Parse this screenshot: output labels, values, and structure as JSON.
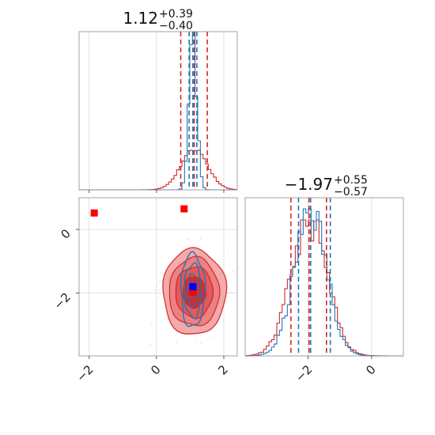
{
  "colors": {
    "red": "#d62728",
    "blue": "#1f77b4",
    "marker_red": "#ff0000",
    "marker_blue": "#0000ff"
  },
  "chart_data": {
    "type": "corner",
    "parameters": [
      {
        "title_main": "1.12",
        "title_plus": "+0.39",
        "title_minus": "−0.40"
      },
      {
        "title_main": "−1.97",
        "title_plus": "+0.55",
        "title_minus": "−0.57"
      }
    ],
    "axes": {
      "p1_range": [
        -2.3,
        2.4
      ],
      "p2_range": [
        -3.98,
        1.0
      ],
      "p1_ticks": [
        -2,
        0,
        2
      ],
      "p1_tick_labels": [
        "−2",
        "0",
        "2"
      ],
      "p2_ticks": [
        -2,
        0
      ],
      "p2_tick_labels": [
        "−2",
        "0"
      ],
      "grid": true
    },
    "series": [
      {
        "color": "red",
        "p1_quantiles": [
          0.72,
          1.12,
          1.51
        ],
        "p2_quantiles": [
          -2.54,
          -1.97,
          -1.42
        ],
        "p1_hist_peak": 0.26,
        "p2_hist_peak": 0.86
      },
      {
        "color": "blue",
        "p1_quantiles": [
          0.97,
          1.08,
          1.2
        ],
        "p2_quantiles": [
          -2.3,
          -1.92,
          -1.3
        ],
        "p1_hist_peak": 1.0,
        "p2_hist_peak": 0.93
      }
    ],
    "markers": [
      {
        "color": "marker_red",
        "shape": "square",
        "p1": -1.85,
        "p2": 0.52
      },
      {
        "color": "marker_red",
        "shape": "square",
        "p1": 0.82,
        "p2": 0.65
      },
      {
        "color": "marker_red",
        "shape": "square",
        "p1": 1.08,
        "p2": -1.97
      },
      {
        "color": "marker_blue",
        "shape": "square",
        "p1": 1.08,
        "p2": -1.8
      }
    ]
  }
}
